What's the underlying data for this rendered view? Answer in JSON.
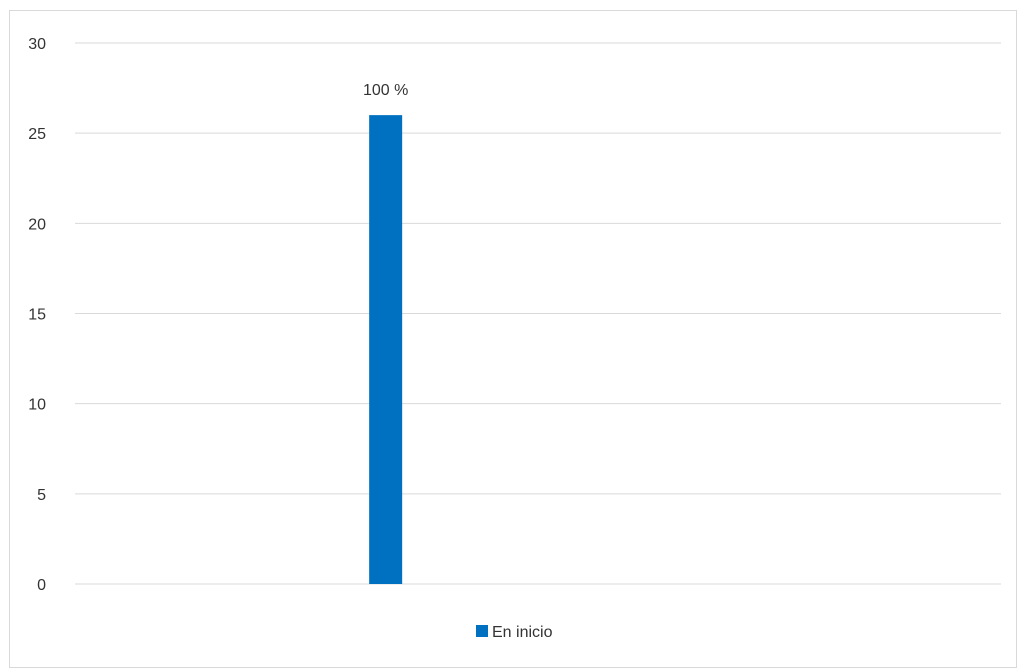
{
  "chart_data": {
    "type": "bar",
    "categories": [
      ""
    ],
    "series": [
      {
        "name": "En inicio",
        "values": [
          26
        ],
        "color": "#0070C0"
      }
    ],
    "data_labels": [
      "100 %"
    ],
    "title": "",
    "xlabel": "",
    "ylabel": "",
    "ylim": [
      0,
      30
    ],
    "yticks": [
      0,
      5,
      10,
      15,
      20,
      25,
      30
    ],
    "grid": true,
    "legend_position": "bottom"
  }
}
